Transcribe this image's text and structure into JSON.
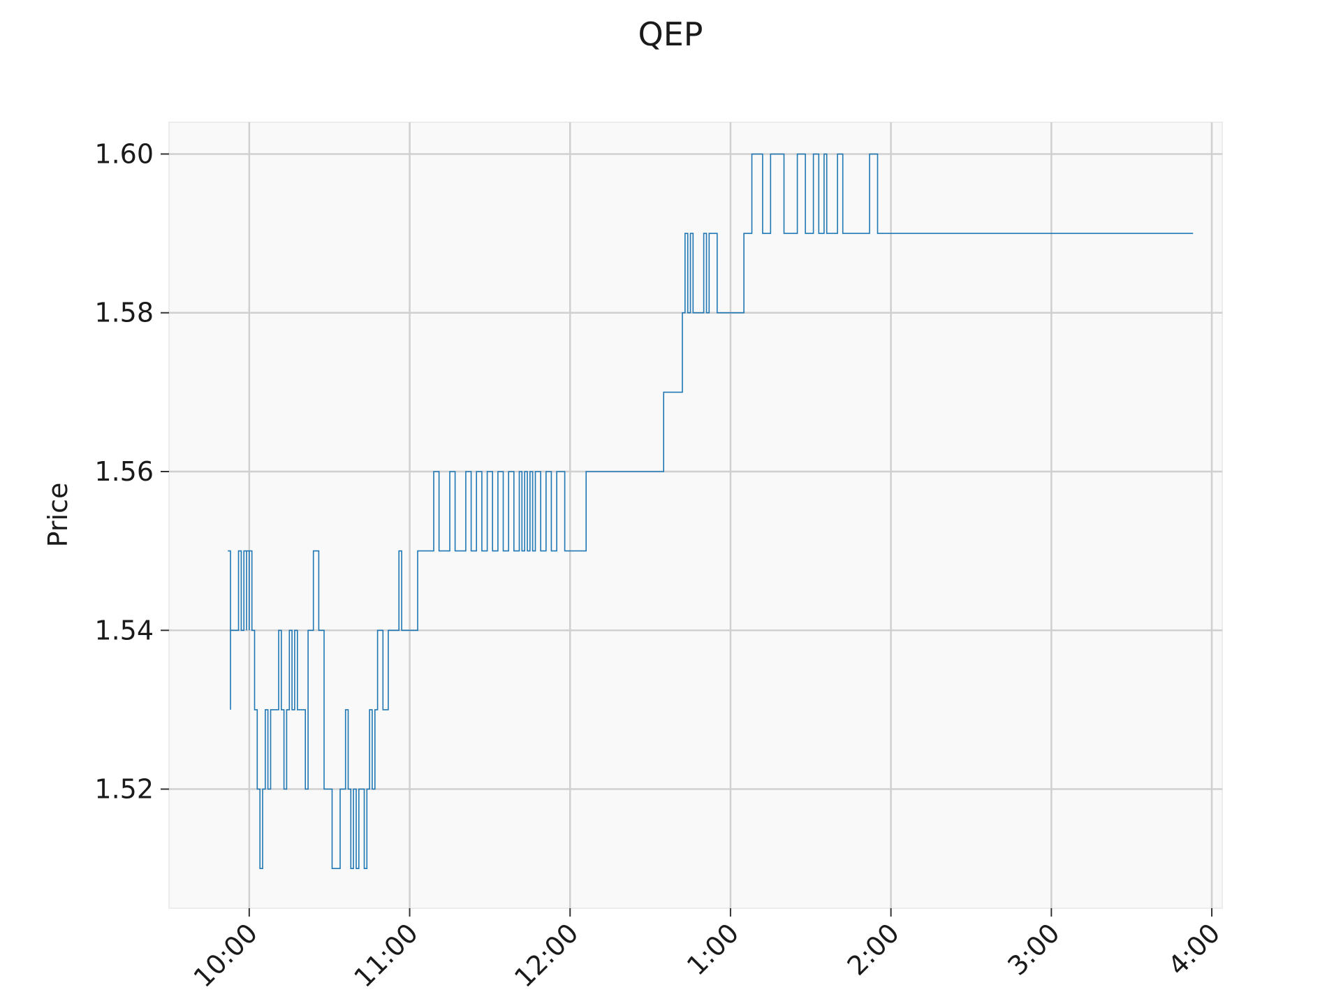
{
  "chart_data": {
    "type": "line",
    "title": "QEP",
    "xlabel": "",
    "ylabel": "Price",
    "x_unit": "time of day",
    "xlim": [
      "9:30",
      "4:00"
    ],
    "ylim": [
      1.505,
      1.604
    ],
    "x_ticks": [
      "10:00",
      "11:00",
      "12:00",
      "1:00",
      "2:00",
      "3:00",
      "4:00"
    ],
    "y_ticks": [
      "1.52",
      "1.54",
      "1.56",
      "1.58",
      "1.60"
    ],
    "grid": true,
    "line_color": "#1f77b4",
    "series": [
      {
        "x": [
          "9:52",
          "9:53",
          "9:53",
          "9:54",
          "9:56",
          "9:57",
          "9:58",
          "9:59",
          "9:59",
          "10:00",
          "10:00",
          "10:01",
          "10:02",
          "10:03",
          "10:04",
          "10:05",
          "10:06",
          "10:07",
          "10:08",
          "10:09",
          "10:10",
          "10:11",
          "10:12",
          "10:13",
          "10:14",
          "10:15",
          "10:16",
          "10:17",
          "10:18",
          "10:19",
          "10:20",
          "10:21",
          "10:22",
          "10:24",
          "10:26",
          "10:28",
          "10:30",
          "10:31",
          "10:33",
          "10:34",
          "10:35",
          "10:36",
          "10:37",
          "10:38",
          "10:39",
          "10:40",
          "10:41",
          "10:42",
          "10:43",
          "10:44",
          "10:45",
          "10:46",
          "10:47",
          "10:48",
          "10:50",
          "10:52",
          "10:53",
          "10:54",
          "10:55",
          "10:56",
          "10:57",
          "10:58",
          "10:59",
          "11:00",
          "11:02",
          "11:03",
          "11:05",
          "11:07",
          "11:09",
          "11:11",
          "11:13",
          "11:15",
          "11:17",
          "11:19",
          "11:21",
          "11:23",
          "11:25",
          "11:27",
          "11:29",
          "11:31",
          "11:33",
          "11:35",
          "11:37",
          "11:39",
          "11:41",
          "11:42",
          "11:43",
          "11:44",
          "11:45",
          "11:46",
          "11:47",
          "11:49",
          "11:51",
          "11:53",
          "11:55",
          "11:58",
          "12:02",
          "12:04",
          "12:06",
          "12:08",
          "12:15",
          "12:25",
          "12:35",
          "12:42",
          "12:43",
          "12:44",
          "12:45",
          "12:46",
          "12:48",
          "12:50",
          "12:51",
          "12:52",
          "12:55",
          "12:58",
          "13:01",
          "13:03",
          "13:05",
          "13:08",
          "13:12",
          "13:15",
          "13:20",
          "13:25",
          "13:28",
          "13:31",
          "13:33",
          "13:35",
          "13:36",
          "13:37",
          "13:38",
          "13:39",
          "13:40",
          "13:42",
          "13:45",
          "13:48",
          "13:52",
          "13:55",
          "13:58",
          "14:00",
          "14:01",
          "14:02",
          "14:03",
          "14:05",
          "14:07",
          "14:10",
          "14:15",
          "14:30",
          "14:45",
          "14:46",
          "14:50",
          "15:00",
          "15:15",
          "15:30",
          "15:44",
          "15:45",
          "15:46",
          "15:48",
          "15:53"
        ],
        "y": [
          1.55,
          1.53,
          1.54,
          1.54,
          1.55,
          1.54,
          1.55,
          1.54,
          1.55,
          1.54,
          1.55,
          1.54,
          1.53,
          1.52,
          1.51,
          1.52,
          1.53,
          1.52,
          1.53,
          1.53,
          1.53,
          1.54,
          1.53,
          1.52,
          1.53,
          1.54,
          1.53,
          1.54,
          1.53,
          1.53,
          1.53,
          1.52,
          1.54,
          1.55,
          1.54,
          1.52,
          1.52,
          1.51,
          1.51,
          1.52,
          1.52,
          1.53,
          1.52,
          1.51,
          1.52,
          1.51,
          1.52,
          1.52,
          1.51,
          1.52,
          1.53,
          1.52,
          1.53,
          1.54,
          1.53,
          1.54,
          1.54,
          1.54,
          1.54,
          1.55,
          1.54,
          1.54,
          1.54,
          1.54,
          1.54,
          1.55,
          1.55,
          1.55,
          1.56,
          1.55,
          1.55,
          1.56,
          1.55,
          1.55,
          1.56,
          1.55,
          1.56,
          1.55,
          1.56,
          1.55,
          1.56,
          1.55,
          1.56,
          1.55,
          1.56,
          1.55,
          1.56,
          1.55,
          1.56,
          1.55,
          1.56,
          1.55,
          1.56,
          1.55,
          1.56,
          1.55,
          1.55,
          1.55,
          1.56,
          1.56,
          1.56,
          1.56,
          1.57,
          1.58,
          1.59,
          1.58,
          1.59,
          1.58,
          1.58,
          1.59,
          1.58,
          1.59,
          1.58,
          1.58,
          1.58,
          1.58,
          1.59,
          1.6,
          1.59,
          1.6,
          1.59,
          1.6,
          1.59,
          1.6,
          1.59,
          1.6,
          1.59,
          1.59,
          1.59,
          1.59,
          1.6,
          1.59,
          1.59,
          1.59,
          1.6,
          1.59,
          1.59,
          1.59,
          1.59,
          1.59,
          1.59,
          1.59,
          1.59,
          1.59,
          1.59,
          1.59,
          1.59,
          1.59,
          1.59,
          1.59,
          1.59,
          1.59,
          1.59,
          1.59,
          1.59,
          1.59,
          1.59
        ]
      }
    ]
  }
}
